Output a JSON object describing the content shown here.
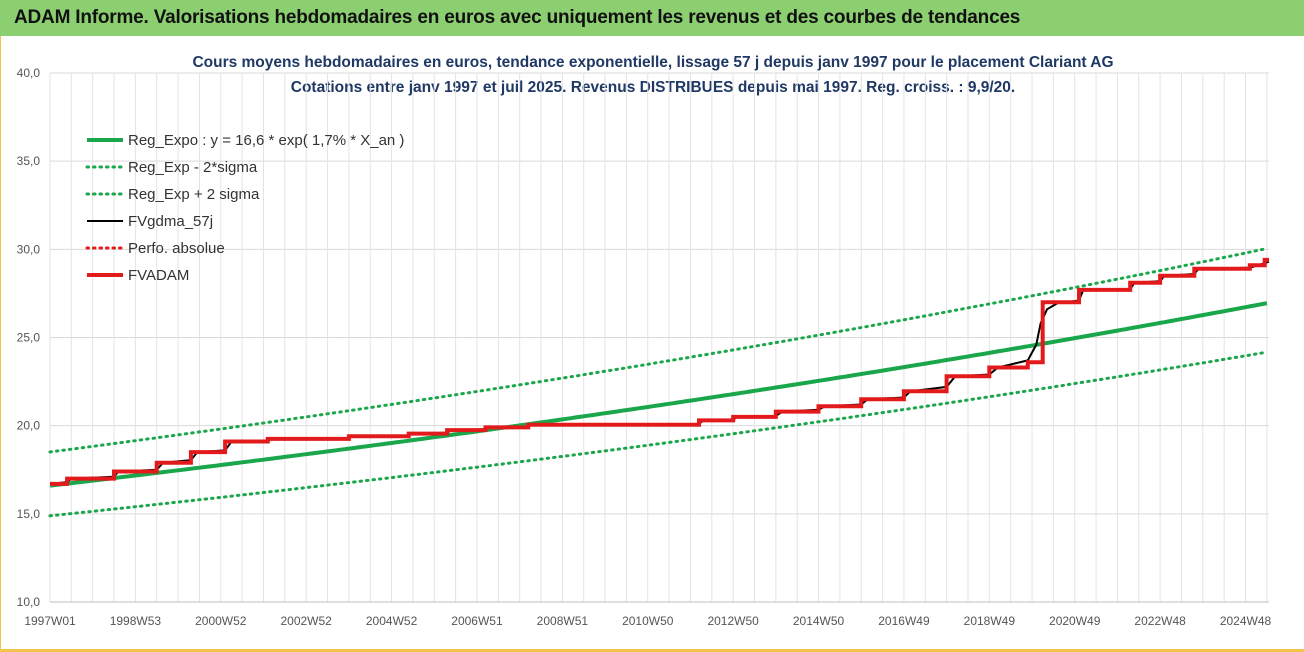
{
  "banner": {
    "title": "ADAM Informe. Valorisations hebdomadaires en euros avec uniquement les revenus et des courbes de tendances"
  },
  "chart_data": {
    "type": "line",
    "title": "Cours moyens hebdomadaires en euros, tendance exponentielle, lissage 57 j depuis janv 1997 pour le placement Clariant AG",
    "subtitle": "Cotations entre janv 1997 et juil 2025. Revenus DISTRIBUES depuis mai 1997. Reg. croiss. : 9,9/20.",
    "xlabel": "",
    "ylabel": "",
    "ylim": [
      10,
      40
    ],
    "yticks": [
      "10,0",
      "15,0",
      "20,0",
      "25,0",
      "30,0",
      "35,0",
      "40,0"
    ],
    "xlim": [
      1997.0,
      2025.55
    ],
    "xticks": [
      {
        "x": 1997.0,
        "label": "1997W01"
      },
      {
        "x": 1999.0,
        "label": "1998W53"
      },
      {
        "x": 2001.0,
        "label": "2000W52"
      },
      {
        "x": 2003.0,
        "label": "2002W52"
      },
      {
        "x": 2005.0,
        "label": "2004W52"
      },
      {
        "x": 2007.0,
        "label": "2006W51"
      },
      {
        "x": 2009.0,
        "label": "2008W51"
      },
      {
        "x": 2011.0,
        "label": "2010W50"
      },
      {
        "x": 2013.0,
        "label": "2012W50"
      },
      {
        "x": 2015.0,
        "label": "2014W50"
      },
      {
        "x": 2017.0,
        "label": "2016W49"
      },
      {
        "x": 2019.0,
        "label": "2018W49"
      },
      {
        "x": 2021.0,
        "label": "2020W49"
      },
      {
        "x": 2023.0,
        "label": "2022W48"
      },
      {
        "x": 2025.0,
        "label": "2024W48"
      }
    ],
    "grid": true,
    "legend_position": "top-left",
    "regression": {
      "a": 16.6,
      "rate": 0.017,
      "sigma_factor": 1.115
    },
    "legend": [
      {
        "name": "Reg_Expo : y = 16,6 * exp( 1,7% *  X_an )",
        "color": "#1aa64a",
        "style": "solid-thick"
      },
      {
        "name": "Reg_Exp - 2*sigma",
        "color": "#1aa64a",
        "style": "dotted"
      },
      {
        "name": "Reg_Exp + 2 sigma",
        "color": "#1aa64a",
        "style": "dotted"
      },
      {
        "name": "FVgdma_57j",
        "color": "#000000",
        "style": "solid"
      },
      {
        "name": "Perfo. absolue",
        "color": "#e31a1c",
        "style": "dotted"
      },
      {
        "name": "FVADAM",
        "color": "#e31a1c",
        "style": "solid-thick"
      }
    ],
    "series": [
      {
        "name": "FVADAM",
        "step": true,
        "points": [
          [
            1997.0,
            16.7
          ],
          [
            1997.4,
            17.0
          ],
          [
            1998.5,
            17.4
          ],
          [
            1999.5,
            17.9
          ],
          [
            2000.3,
            18.5
          ],
          [
            2001.1,
            19.1
          ],
          [
            2002.1,
            19.25
          ],
          [
            2004.0,
            19.4
          ],
          [
            2005.4,
            19.55
          ],
          [
            2006.3,
            19.75
          ],
          [
            2007.2,
            19.9
          ],
          [
            2008.2,
            20.05
          ],
          [
            2012.2,
            20.3
          ],
          [
            2013.0,
            20.5
          ],
          [
            2014.0,
            20.8
          ],
          [
            2015.0,
            21.1
          ],
          [
            2016.0,
            21.5
          ],
          [
            2017.0,
            21.95
          ],
          [
            2018.0,
            22.8
          ],
          [
            2019.0,
            23.3
          ],
          [
            2019.9,
            23.6
          ],
          [
            2020.25,
            27.0
          ],
          [
            2021.1,
            27.7
          ],
          [
            2022.3,
            28.1
          ],
          [
            2023.0,
            28.5
          ],
          [
            2023.8,
            28.9
          ],
          [
            2025.1,
            29.1
          ],
          [
            2025.45,
            29.4
          ],
          [
            2025.55,
            29.4
          ]
        ]
      },
      {
        "name": "FVgdma_57j",
        "step": false,
        "points": [
          [
            1997.0,
            16.7
          ],
          [
            1997.4,
            16.8
          ],
          [
            1997.5,
            17.0
          ],
          [
            1998.5,
            17.1
          ],
          [
            1998.6,
            17.4
          ],
          [
            1999.5,
            17.5
          ],
          [
            1999.65,
            17.9
          ],
          [
            2000.3,
            18.05
          ],
          [
            2000.45,
            18.5
          ],
          [
            2001.1,
            18.6
          ],
          [
            2001.25,
            19.1
          ],
          [
            2002.1,
            19.15
          ],
          [
            2002.2,
            19.25
          ],
          [
            2004.0,
            19.3
          ],
          [
            2004.1,
            19.4
          ],
          [
            2005.4,
            19.45
          ],
          [
            2005.5,
            19.55
          ],
          [
            2006.3,
            19.6
          ],
          [
            2006.4,
            19.75
          ],
          [
            2007.2,
            19.8
          ],
          [
            2007.3,
            19.9
          ],
          [
            2008.2,
            19.95
          ],
          [
            2008.3,
            20.05
          ],
          [
            2012.2,
            20.1
          ],
          [
            2012.3,
            20.3
          ],
          [
            2013.0,
            20.35
          ],
          [
            2013.1,
            20.5
          ],
          [
            2014.0,
            20.55
          ],
          [
            2014.15,
            20.8
          ],
          [
            2015.0,
            20.9
          ],
          [
            2015.15,
            21.1
          ],
          [
            2016.0,
            21.2
          ],
          [
            2016.15,
            21.5
          ],
          [
            2017.0,
            21.6
          ],
          [
            2017.15,
            21.95
          ],
          [
            2018.0,
            22.2
          ],
          [
            2018.2,
            22.8
          ],
          [
            2019.0,
            22.9
          ],
          [
            2019.2,
            23.3
          ],
          [
            2019.9,
            23.7
          ],
          [
            2020.1,
            24.6
          ],
          [
            2020.2,
            25.8
          ],
          [
            2020.35,
            26.6
          ],
          [
            2020.6,
            26.95
          ],
          [
            2021.1,
            27.1
          ],
          [
            2021.2,
            27.7
          ],
          [
            2022.3,
            27.75
          ],
          [
            2022.4,
            28.1
          ],
          [
            2023.0,
            28.2
          ],
          [
            2023.1,
            28.5
          ],
          [
            2023.8,
            28.6
          ],
          [
            2023.9,
            28.9
          ],
          [
            2025.1,
            28.95
          ],
          [
            2025.3,
            29.1
          ],
          [
            2025.55,
            29.3
          ]
        ]
      }
    ]
  }
}
